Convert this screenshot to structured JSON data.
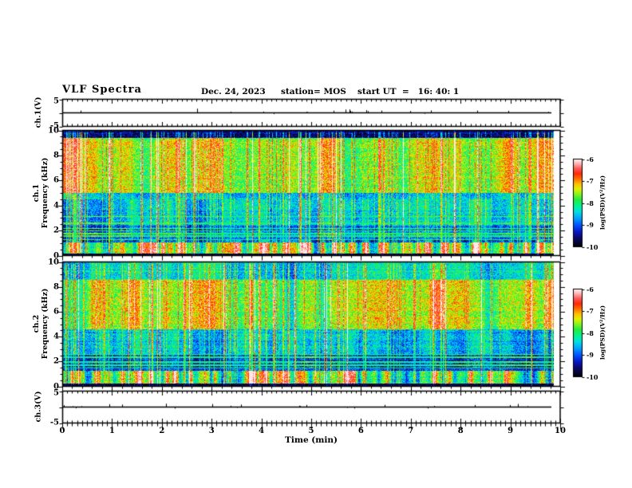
{
  "figure": {
    "title": "VLF Spectra",
    "date": "Dec. 24, 2023",
    "station": "station= MOS",
    "start_ut": "start UT  =   16: 40: 1"
  },
  "x_axis": {
    "label": "Time (min)",
    "tick_labels": [
      "0",
      "1",
      "2",
      "3",
      "4",
      "5",
      "6",
      "7",
      "8",
      "9",
      "10"
    ],
    "range_min": [
      0,
      10
    ]
  },
  "colorbar": {
    "label": "log(PSD)(V²/Hz)",
    "tick_labels": [
      "-6",
      "-7",
      "-8",
      "-9",
      "-10"
    ],
    "range_log_psd": [
      -10,
      -6
    ]
  },
  "panels": {
    "ch1_voltage": {
      "ylabel": "ch.1(V)",
      "ytick_labels": [
        "5",
        "-5"
      ],
      "yrange_V": [
        -5,
        5
      ]
    },
    "ch1_spectrogram": {
      "ylabel_channel": "ch.1",
      "ylabel_axis": "Frequency (kHz)",
      "ytick_labels": [
        "0",
        "2",
        "4",
        "6",
        "8",
        "10"
      ],
      "yrange_khz": [
        0,
        10
      ]
    },
    "ch2_spectrogram": {
      "ylabel_channel": "ch.2",
      "ylabel_axis": "Frequency (kHz)",
      "ytick_labels": [
        "0",
        "2",
        "4",
        "6",
        "8",
        "10"
      ],
      "yrange_khz": [
        0,
        10
      ]
    },
    "ch3_voltage": {
      "ylabel": "ch.3(V)",
      "ytick_labels": [
        "5",
        "-5"
      ],
      "yrange_V": [
        -5,
        5
      ]
    }
  },
  "colors": {
    "frame": "#000000",
    "background": "#ffffff",
    "trace": "#000000"
  },
  "chart_data": [
    {
      "type": "line",
      "name": "ch.1 voltage waveform",
      "ylabel": "ch.1(V)",
      "x_range_min": [
        0,
        10
      ],
      "y_range_V": [
        -5,
        5
      ],
      "baseline_V": 0,
      "description": "nearly flat trace at 0 V with sparse clusters of small upward impulsive spikes (< ~1.5 V)",
      "seed": 101,
      "spike_probability": 0.05,
      "max_spike_V": 1.5,
      "data_end_min": 9.85
    },
    {
      "type": "heatmap",
      "name": "ch.1 VLF spectrogram",
      "xlabel": "Time (min)",
      "ylabel": "ch.1 Frequency (kHz)",
      "x_range_min": [
        0,
        10
      ],
      "y_range_khz": [
        0,
        10
      ],
      "z_label": "log(PSD)(V²/Hz)",
      "z_range_log_psd": [
        -10,
        -6
      ],
      "description": "dense impulsive broadband sferic streaks; strongest power (red, ~-7) at 5-9.4 kHz, bright band 0.15-1 kHz, weak (blue/black, ~-9.5) 1-2.4 kHz with narrowband horizontal lines, dark band above 9.4 kHz",
      "seed": 7,
      "bands": [
        {
          "f_lo": 0.0,
          "f_hi": 0.15,
          "level": 0.03
        },
        {
          "f_lo": 0.15,
          "f_hi": 1.0,
          "level": 0.62
        },
        {
          "f_lo": 1.0,
          "f_hi": 2.4,
          "level": 0.26
        },
        {
          "f_lo": 2.4,
          "f_hi": 5.0,
          "level": 0.38
        },
        {
          "f_lo": 5.0,
          "f_hi": 9.4,
          "level": 0.66
        },
        {
          "f_lo": 9.4,
          "f_hi": 10.0,
          "level": 0.1
        }
      ],
      "narrowband_lines_khz": [
        1.25,
        1.55,
        1.75,
        1.95,
        2.15,
        2.55,
        3.1
      ],
      "data_end_min": 9.85
    },
    {
      "type": "heatmap",
      "name": "ch.2 VLF spectrogram",
      "xlabel": "Time (min)",
      "ylabel": "ch.2 Frequency (kHz)",
      "x_range_min": [
        0,
        10
      ],
      "y_range_khz": [
        0,
        10
      ],
      "z_label": "log(PSD)(V²/Hz)",
      "z_range_log_psd": [
        -10,
        -6
      ],
      "description": "similar to ch.1; strongest power 4.6-8.6 kHz, greener mixed band 8.6-10 kHz, dark 1.2-2.6 kHz with narrowband lines, bright band 0.2-1.2 kHz",
      "seed": 23,
      "bands": [
        {
          "f_lo": 0.0,
          "f_hi": 0.2,
          "level": 0.03
        },
        {
          "f_lo": 0.2,
          "f_hi": 1.2,
          "level": 0.6
        },
        {
          "f_lo": 1.2,
          "f_hi": 2.6,
          "level": 0.22
        },
        {
          "f_lo": 2.6,
          "f_hi": 4.6,
          "level": 0.36
        },
        {
          "f_lo": 4.6,
          "f_hi": 8.6,
          "level": 0.68
        },
        {
          "f_lo": 8.6,
          "f_hi": 10.0,
          "level": 0.45
        }
      ],
      "narrowband_lines_khz": [
        1.45,
        1.7,
        1.95,
        2.3,
        2.55
      ],
      "data_end_min": 9.85
    },
    {
      "type": "line",
      "name": "ch.3 voltage waveform",
      "ylabel": "ch.3(V)",
      "x_range_min": [
        0,
        10
      ],
      "y_range_V": [
        -5,
        5
      ],
      "baseline_V": 0,
      "description": "nearly flat trace at 0 V with sparse clusters of small upward impulsive spikes (< ~1.5 V)",
      "seed": 303,
      "spike_probability": 0.05,
      "max_spike_V": 1.5,
      "data_end_min": 9.85
    }
  ],
  "colormap": {
    "stops": [
      [
        0.0,
        "#02020e"
      ],
      [
        0.08,
        "#08085a"
      ],
      [
        0.16,
        "#0a14be"
      ],
      [
        0.24,
        "#0050ff"
      ],
      [
        0.32,
        "#00a0ff"
      ],
      [
        0.4,
        "#00e1e1"
      ],
      [
        0.47,
        "#00f58c"
      ],
      [
        0.54,
        "#28eb3c"
      ],
      [
        0.6,
        "#82f51e"
      ],
      [
        0.66,
        "#e1f000"
      ],
      [
        0.72,
        "#ffbe00"
      ],
      [
        0.78,
        "#ff6e00"
      ],
      [
        0.84,
        "#ff280a"
      ],
      [
        0.9,
        "#ff5a5a"
      ],
      [
        0.95,
        "#ffaaaa"
      ],
      [
        1.0,
        "#ffebeb"
      ]
    ]
  }
}
